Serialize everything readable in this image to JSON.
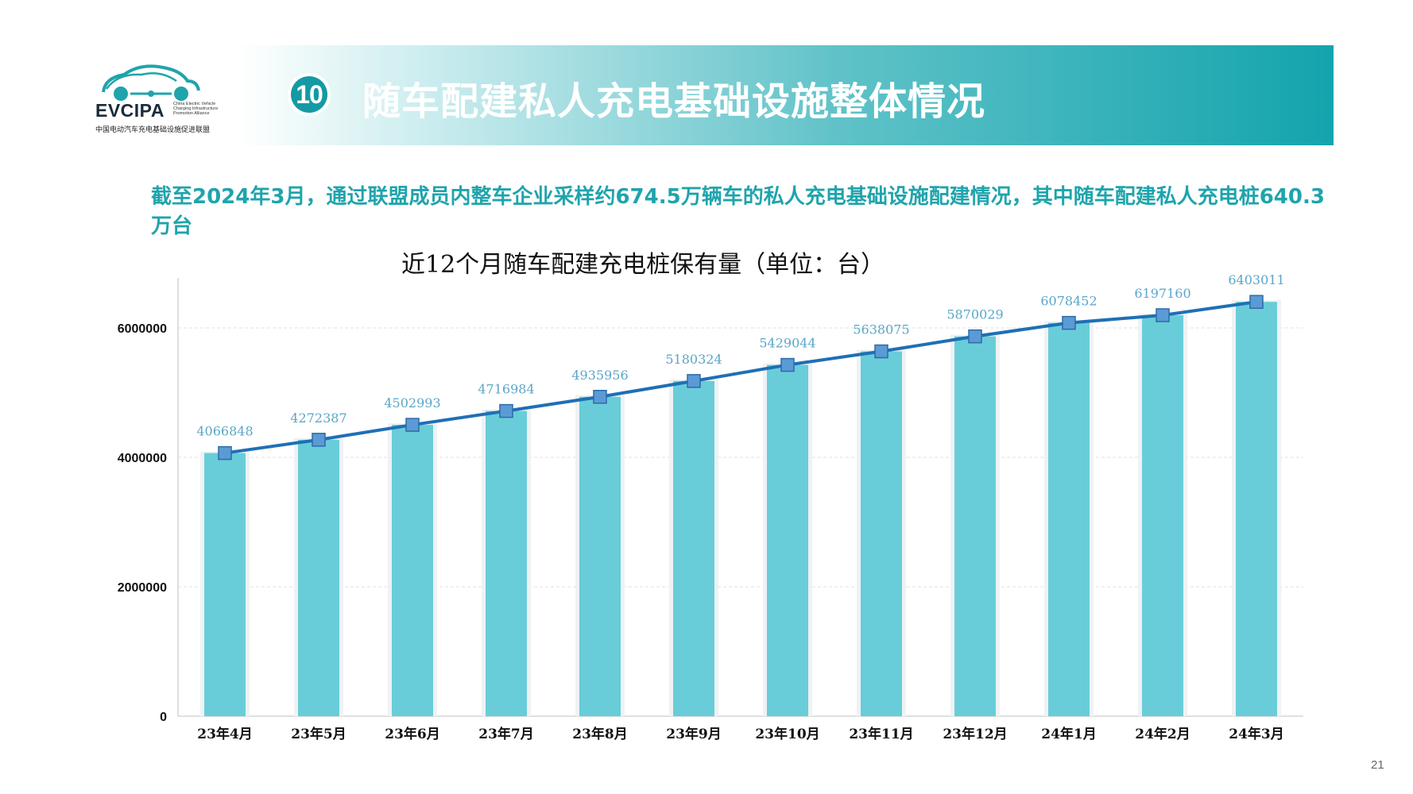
{
  "header": {
    "logo_text": "EVCIPA",
    "logo_en": "China Electric Vehicle Charging Infrastructure Promotion Alliance",
    "logo_cn": "中国电动汽车充电基础设施促进联盟",
    "section_number": "10",
    "section_title": "随车配建私人充电基础设施整体情况"
  },
  "summary": "截至2024年3月，通过联盟成员内整车企业采样约674.5万辆车的私人充电基础设施配建情况，其中随车配建私人充电桩640.3万台",
  "page_number": "21",
  "colors": {
    "accent": "#1fa4ac",
    "bar": "#68cdd9",
    "line": "#1f6fb5",
    "marker": "#5b9bd5",
    "data_label": "#5aa6c8"
  },
  "chart_data": {
    "type": "bar",
    "title": "近12个月随车配建充电桩保有量（单位：台）",
    "categories": [
      "23年4月",
      "23年5月",
      "23年6月",
      "23年7月",
      "23年8月",
      "23年9月",
      "23年10月",
      "23年11月",
      "23年12月",
      "24年1月",
      "24年2月",
      "24年3月"
    ],
    "values": [
      4066848,
      4272387,
      4502993,
      4716984,
      4935956,
      5180324,
      5429044,
      5638075,
      5870029,
      6078452,
      6197160,
      6403011
    ],
    "overlay": "line-with-square-markers",
    "ylim": [
      0,
      6700000
    ],
    "yticks": [
      0,
      2000000,
      4000000,
      6000000
    ],
    "ytick_labels": [
      "0",
      "2000000",
      "4000000",
      "6000000"
    ],
    "grid": true,
    "legend": "none"
  }
}
